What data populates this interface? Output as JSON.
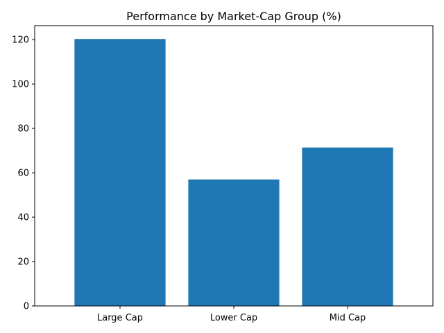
{
  "chart_data": {
    "type": "bar",
    "title": "Performance by Market-Cap Group (%)",
    "xlabel": "",
    "ylabel": "",
    "categories": [
      "Large Cap",
      "Lower Cap",
      "Mid Cap"
    ],
    "values": [
      120.3,
      57.0,
      71.4
    ],
    "ylim": [
      0,
      126.3
    ],
    "yticks": [
      0,
      20,
      40,
      60,
      80,
      100,
      120
    ],
    "grid": false,
    "bar_color": "#1f77b4"
  }
}
